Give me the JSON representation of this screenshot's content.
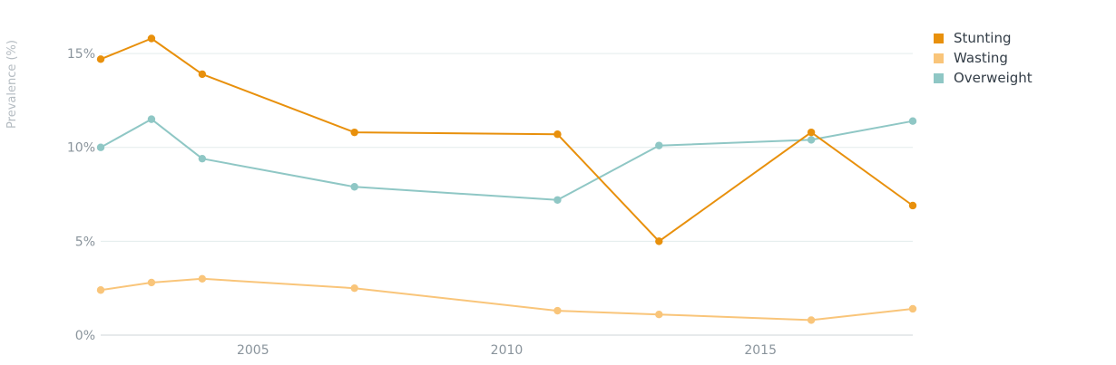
{
  "chart_data": {
    "type": "line",
    "ylabel": "Prevalence (%)",
    "xlabel": "",
    "x": [
      2002,
      2003,
      2004,
      2007,
      2011,
      2013,
      2016,
      2018
    ],
    "xlim": [
      2002,
      2018
    ],
    "ylim": [
      0,
      16.5
    ],
    "x_ticks": [
      2005,
      2010,
      2015
    ],
    "y_ticks": [
      0,
      5,
      10,
      15
    ],
    "y_tick_labels": [
      "0%",
      "5%",
      "10%",
      "15%"
    ],
    "grid": "horizontal",
    "legend_position": "top-right",
    "series": [
      {
        "name": "Stunting",
        "color": "#e8900c",
        "values": [
          14.7,
          15.8,
          13.9,
          10.8,
          10.7,
          5.0,
          10.8,
          6.9
        ]
      },
      {
        "name": "Wasting",
        "color": "#f9c57a",
        "values": [
          2.4,
          2.8,
          3.0,
          2.5,
          1.3,
          1.1,
          0.8,
          1.4
        ]
      },
      {
        "name": "Overweight",
        "color": "#8fc7c5",
        "values": [
          10.0,
          11.5,
          9.4,
          7.9,
          7.2,
          10.1,
          10.4,
          11.4
        ]
      }
    ]
  }
}
